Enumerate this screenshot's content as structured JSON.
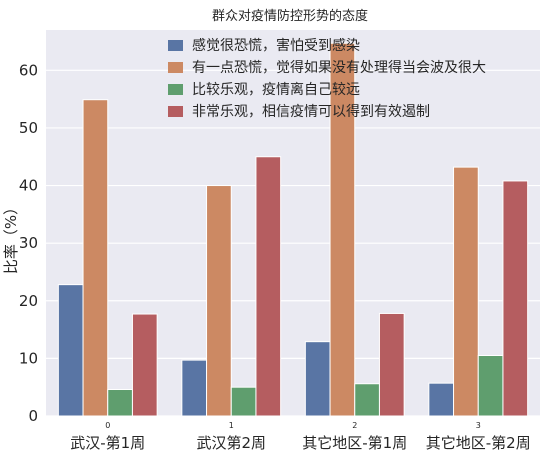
{
  "chart_data": {
    "type": "bar",
    "title": "群众对疫情防控形势的态度",
    "ylabel": "比率（%）",
    "xlabel": "",
    "categories": [
      "武汉-第1周",
      "武汉第2周",
      "其它地区-第1周",
      "其它地区-第2周"
    ],
    "category_indices": [
      "0",
      "1",
      "2",
      "3"
    ],
    "ylim": [
      0,
      67
    ],
    "yticks": [
      0,
      10,
      20,
      30,
      40,
      50,
      60
    ],
    "grid": true,
    "legend_position": "top-center",
    "series": [
      {
        "name": "感觉很恐慌，害怕受到感染",
        "color": "#5975a4",
        "values": [
          22.8,
          9.7,
          12.9,
          5.7
        ]
      },
      {
        "name": "有一点恐慌，觉得如果没有处理得当会波及很大",
        "color": "#cc8963",
        "values": [
          54.9,
          40.0,
          64.7,
          43.2
        ]
      },
      {
        "name": "比较乐观，疫情离自己较远",
        "color": "#5f9e6e",
        "values": [
          4.6,
          5.0,
          5.6,
          10.5
        ]
      },
      {
        "name": "非常乐观，相信疫情可以得到有效遏制",
        "color": "#b55d60",
        "values": [
          17.7,
          45.0,
          17.8,
          40.8
        ]
      }
    ]
  }
}
